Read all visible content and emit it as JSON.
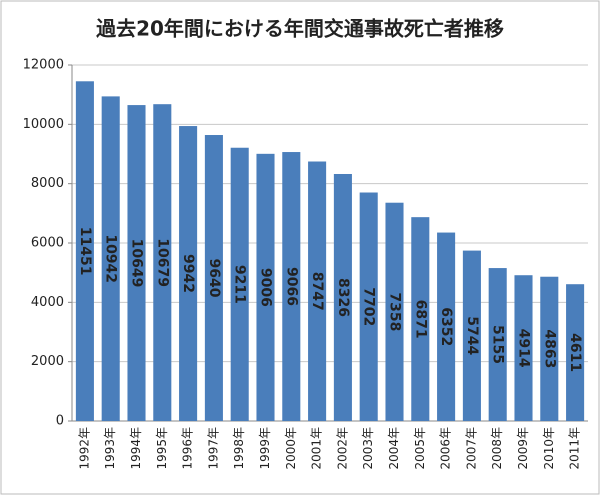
{
  "chart_data": {
    "type": "bar",
    "title": "過去20年間における年間交通事故死亡者推移",
    "categories": [
      "1992年",
      "1993年",
      "1994年",
      "1995年",
      "1996年",
      "1997年",
      "1998年",
      "1999年",
      "2000年",
      "2001年",
      "2002年",
      "2003年",
      "2004年",
      "2005年",
      "2006年",
      "2007年",
      "2008年",
      "2009年",
      "2010年",
      "2011年"
    ],
    "values": [
      11451,
      10942,
      10649,
      10679,
      9942,
      9640,
      9211,
      9006,
      9066,
      8747,
      8326,
      7702,
      7358,
      6871,
      6352,
      5744,
      5155,
      4914,
      4863,
      4611
    ],
    "color": "#4a7ebb",
    "ylim": [
      0,
      12000
    ],
    "yticks": [
      0,
      2000,
      4000,
      6000,
      8000,
      10000,
      12000
    ],
    "grid": true
  }
}
